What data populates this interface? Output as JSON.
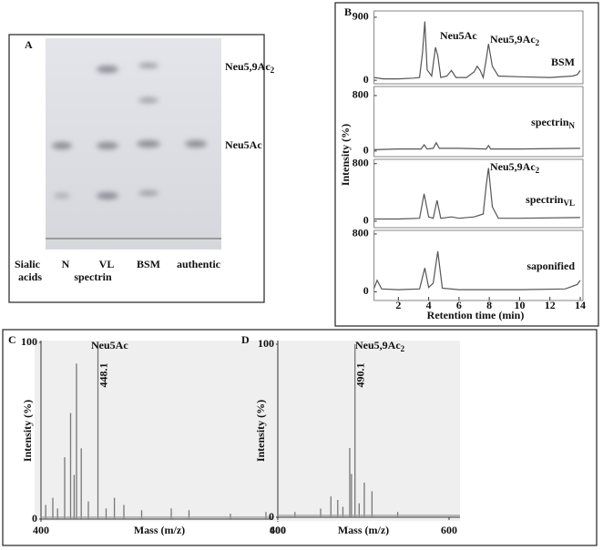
{
  "panel_a": {
    "letter": "A",
    "bands": [
      {
        "text": "Neu5,9Ac",
        "sub": "2"
      },
      {
        "text": "Neu5Ac"
      }
    ],
    "row_label": [
      "Sialic",
      "acids"
    ],
    "lanes": [
      "N",
      "VL",
      "BSM",
      "authentic"
    ],
    "group_label": "spectrin"
  },
  "panel_b": {
    "letter": "B",
    "ylabel": "Intensity (%)",
    "xlabel": "Retention time (min)",
    "xlim": [
      0.4,
      14
    ],
    "xticks": [
      2,
      4,
      6,
      8,
      10,
      12,
      14
    ],
    "annotations": [
      {
        "text": "Neu5Ac"
      },
      {
        "text": "Neu5,9Ac",
        "sub": "2"
      },
      {
        "text": "Neu5,9Ac",
        "sub": "2"
      }
    ],
    "traces": [
      {
        "name": "BSM",
        "color": "#555555",
        "ylim": [
          -50,
          990
        ],
        "yticks": [
          0,
          900
        ],
        "x": [
          0.4,
          1,
          2,
          3,
          3.4,
          3.6,
          3.75,
          3.9,
          4.2,
          4.45,
          4.6,
          4.8,
          5.2,
          5.5,
          5.8,
          6.5,
          7,
          7.2,
          7.4,
          7.6,
          7.8,
          7.95,
          8.2,
          8.6,
          10,
          12,
          13.5,
          13.8,
          14
        ],
        "values": [
          40,
          20,
          20,
          30,
          40,
          400,
          840,
          150,
          60,
          470,
          350,
          40,
          60,
          140,
          40,
          40,
          120,
          200,
          140,
          40,
          300,
          520,
          200,
          60,
          50,
          40,
          60,
          80,
          140
        ]
      },
      {
        "name": "spectrin",
        "sub": "N",
        "color": "#555555",
        "ylim": [
          -80,
          930
        ],
        "yticks": [
          0,
          800
        ],
        "x": [
          0.4,
          2,
          3.5,
          3.7,
          3.9,
          4.3,
          4.5,
          4.7,
          6,
          7.8,
          7.95,
          8.1,
          10,
          14
        ],
        "values": [
          20,
          30,
          30,
          90,
          30,
          40,
          120,
          40,
          40,
          30,
          80,
          30,
          30,
          40
        ]
      },
      {
        "name": "spectrin",
        "sub": "VL",
        "color": "#555555",
        "ylim": [
          -90,
          860
        ],
        "yticks": [
          0,
          800
        ],
        "x": [
          0.4,
          2,
          3.4,
          3.7,
          4,
          4.3,
          4.55,
          4.8,
          5.5,
          6,
          7,
          7.6,
          7.8,
          7.95,
          8.2,
          8.6,
          10,
          14
        ],
        "values": [
          30,
          30,
          40,
          380,
          60,
          40,
          290,
          40,
          60,
          40,
          60,
          100,
          500,
          740,
          200,
          40,
          40,
          50
        ]
      },
      {
        "name": "saponified",
        "color": "#555555",
        "ylim": [
          -120,
          850
        ],
        "yticks": [
          0,
          800
        ],
        "x": [
          0.4,
          0.6,
          0.9,
          2,
          3.4,
          3.75,
          4,
          4.3,
          4.6,
          4.9,
          6,
          8,
          10,
          13,
          13.8,
          14
        ],
        "values": [
          50,
          160,
          40,
          30,
          40,
          330,
          60,
          120,
          560,
          50,
          30,
          30,
          30,
          40,
          100,
          160
        ]
      }
    ]
  },
  "panel_c": {
    "letter": "C",
    "annotation": {
      "text": "Neu5Ac"
    },
    "peak_label": 448.1,
    "ylabel": "Intensity (%)",
    "xlabel": "Mass (m/z)",
    "xlim": [
      400,
      600
    ],
    "xticks": [
      400,
      600
    ],
    "ylim": [
      0,
      100
    ],
    "yticks": [
      0,
      100
    ],
    "peaks": {
      "x": [
        404,
        410,
        414,
        420,
        425,
        428,
        430,
        434,
        440,
        448.1,
        455,
        462,
        470,
        485,
        510,
        525,
        560,
        590
      ],
      "values": [
        8,
        12,
        6,
        35,
        60,
        25,
        88,
        40,
        10,
        100,
        6,
        12,
        8,
        5,
        6,
        5,
        3,
        4
      ]
    }
  },
  "panel_d": {
    "letter": "D",
    "annotation": {
      "text": "Neu5,9Ac",
      "sub": "2"
    },
    "peak_label": 490.1,
    "ylabel": "Intensity (%)",
    "xlabel": "Mass (m/z)",
    "xlim": [
      400,
      600
    ],
    "xticks": [
      400,
      600
    ],
    "ylim": [
      0,
      100
    ],
    "yticks": [
      0,
      100
    ],
    "peaks": {
      "x": [
        420,
        450,
        462,
        470,
        476,
        484,
        486,
        490.1,
        495,
        501,
        510,
        540
      ],
      "values": [
        3,
        5,
        12,
        10,
        6,
        40,
        25,
        100,
        8,
        20,
        15,
        3
      ]
    }
  }
}
